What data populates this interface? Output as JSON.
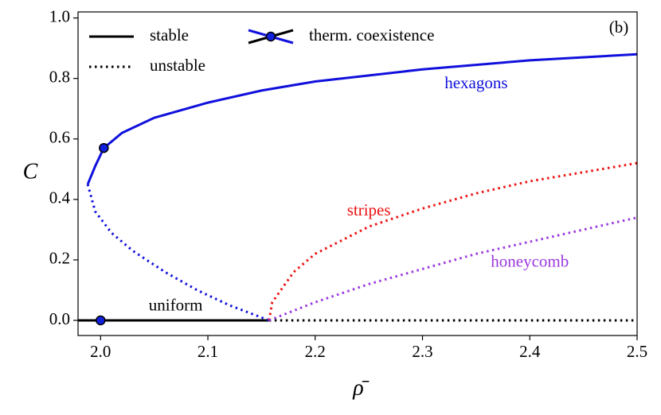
{
  "chart_data": {
    "type": "line",
    "xlabel": "ρ̄",
    "ylabel": "C",
    "panel_label": "(b)",
    "xlim": [
      1.979,
      2.5
    ],
    "ylim": [
      -0.05,
      1.02
    ],
    "xticks": [
      {
        "value": 2,
        "label": "2.0"
      },
      2.1,
      2.2,
      2.3,
      2.4,
      2.5
    ],
    "yticks": [
      {
        "value": 0,
        "label": "0.0"
      },
      0.2,
      0.4,
      0.6,
      0.8,
      {
        "value": 1,
        "label": "1.0"
      }
    ],
    "legend": [
      {
        "label": "stable",
        "style": "solid"
      },
      {
        "label": "unstable",
        "style": "dotted"
      },
      {
        "label": "therm. coexistence",
        "style": "marker"
      }
    ],
    "series": [
      {
        "label": "uniform",
        "color": "#000000",
        "branches": [
          {
            "style": "solid",
            "x": [
              1.979,
              2.157
            ],
            "y": [
              0,
              0
            ]
          },
          {
            "style": "dotted",
            "x": [
              2.157,
              2.5
            ],
            "y": [
              0,
              0
            ]
          }
        ]
      },
      {
        "label": "hexagons",
        "color": "#1010dd",
        "branches": [
          {
            "style": "solid",
            "x": [
              1.988,
              1.995,
              2.003,
              2.02,
              2.05,
              2.1,
              2.15,
              2.2,
              2.3,
              2.4,
              2.5
            ],
            "y": [
              0.45,
              0.51,
              0.57,
              0.62,
              0.67,
              0.72,
              0.76,
              0.79,
              0.83,
              0.86,
              0.88
            ]
          },
          {
            "style": "dotted",
            "x": [
              1.988,
              1.995,
              2.01,
              2.03,
              2.06,
              2.09,
              2.12,
              2.157
            ],
            "y": [
              0.45,
              0.36,
              0.29,
              0.23,
              0.16,
              0.1,
              0.05,
              0
            ]
          }
        ]
      },
      {
        "label": "stripes",
        "color": "#ee1111",
        "branches": [
          {
            "style": "dotted",
            "x": [
              2.157,
              2.16,
              2.18,
              2.2,
              2.25,
              2.3,
              2.35,
              2.4,
              2.45,
              2.5
            ],
            "y": [
              0,
              0.06,
              0.16,
              0.22,
              0.31,
              0.37,
              0.42,
              0.46,
              0.49,
              0.52
            ]
          }
        ]
      },
      {
        "label": "honeycomb",
        "color": "#9a3ae0",
        "branches": [
          {
            "style": "dotted",
            "x": [
              2.157,
              2.2,
              2.25,
              2.3,
              2.35,
              2.4,
              2.45,
              2.5
            ],
            "y": [
              0,
              0.06,
              0.12,
              0.17,
              0.22,
              0.26,
              0.3,
              0.34
            ]
          }
        ]
      }
    ],
    "markers": [
      {
        "x": 2.003,
        "y": 0.57
      },
      {
        "x": 2,
        "y": 0
      }
    ]
  }
}
